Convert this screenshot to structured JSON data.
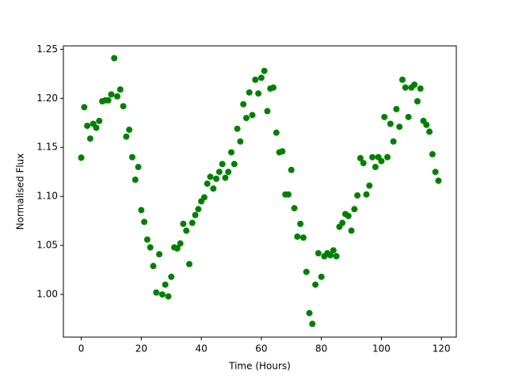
{
  "chart_data": {
    "type": "scatter",
    "xlabel": "Time (Hours)",
    "ylabel": "Normalised Flux",
    "color": "#008000",
    "x": [
      0,
      1,
      2,
      3,
      4,
      5,
      6,
      7,
      8,
      9,
      10,
      11,
      12,
      13,
      14,
      15,
      16,
      17,
      18,
      19,
      20,
      21,
      22,
      23,
      24,
      25,
      26,
      27,
      28,
      29,
      30,
      31,
      32,
      33,
      34,
      35,
      36,
      37,
      38,
      39,
      40,
      41,
      42,
      43,
      44,
      45,
      46,
      47,
      48,
      49,
      50,
      51,
      52,
      53,
      54,
      55,
      56,
      57,
      58,
      59,
      60,
      61,
      62,
      63,
      64,
      65,
      66,
      67,
      68,
      69,
      70,
      71,
      72,
      73,
      74,
      75,
      76,
      77,
      78,
      79,
      80,
      81,
      82,
      83,
      84,
      85,
      86,
      87,
      88,
      89,
      90,
      91,
      92,
      93,
      94,
      95,
      96,
      97,
      98,
      99,
      100,
      101,
      102,
      103,
      104,
      105,
      106,
      107,
      108,
      109,
      110,
      111,
      112,
      113,
      114,
      115,
      116,
      117,
      118,
      119
    ],
    "values": [
      1.1395,
      1.191,
      1.172,
      1.159,
      1.174,
      1.17,
      1.177,
      1.197,
      1.198,
      1.198,
      1.204,
      1.241,
      1.202,
      1.209,
      1.192,
      1.161,
      1.168,
      1.14,
      1.117,
      1.13,
      1.086,
      1.074,
      1.056,
      1.048,
      1.029,
      1.002,
      1.041,
      1.0,
      1.01,
      0.998,
      1.018,
      1.048,
      1.047,
      1.052,
      1.072,
      1.065,
      1.031,
      1.073,
      1.081,
      1.087,
      1.095,
      1.099,
      1.113,
      1.12,
      1.108,
      1.118,
      1.125,
      1.133,
      1.119,
      1.125,
      1.145,
      1.133,
      1.169,
      1.156,
      1.194,
      1.18,
      1.206,
      1.183,
      1.219,
      1.205,
      1.221,
      1.228,
      1.187,
      1.21,
      1.211,
      1.165,
      1.145,
      1.146,
      1.102,
      1.102,
      1.127,
      1.088,
      1.059,
      1.072,
      1.058,
      1.023,
      0.981,
      0.97,
      1.01,
      1.042,
      1.018,
      1.039,
      1.042,
      1.04,
      1.045,
      1.039,
      1.069,
      1.073,
      1.082,
      1.08,
      1.065,
      1.087,
      1.101,
      1.139,
      1.134,
      1.102,
      1.111,
      1.14,
      1.13,
      1.14,
      1.136,
      1.181,
      1.14,
      1.174,
      1.156,
      1.189,
      1.171,
      1.219,
      1.211,
      1.181,
      1.211,
      1.214,
      1.197,
      1.21,
      1.177,
      1.173,
      1.166,
      1.143,
      1.125,
      1.116
    ],
    "xlim": [
      -5.95,
      124.95
    ],
    "xticks": [
      0,
      20,
      40,
      60,
      80,
      100,
      120
    ],
    "ylim": [
      0.9565,
      1.2535
    ],
    "yticks": [
      {
        "value": 1.0,
        "label": "1.00"
      },
      1.05,
      {
        "value": 1.1,
        "label": "1.10"
      },
      1.15,
      {
        "value": 1.2,
        "label": "1.20"
      },
      1.25
    ]
  }
}
